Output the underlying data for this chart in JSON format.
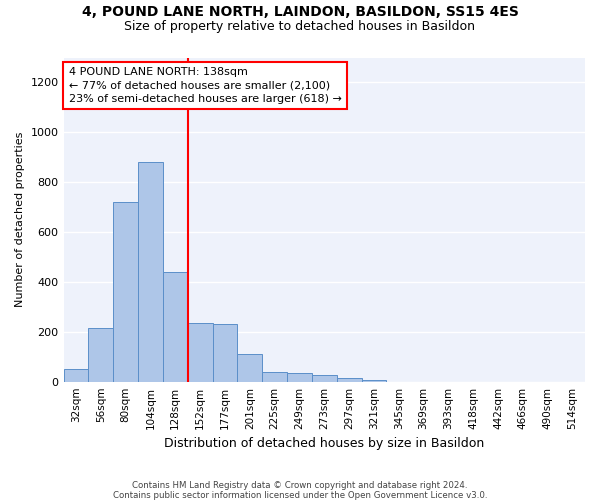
{
  "title": "4, POUND LANE NORTH, LAINDON, BASILDON, SS15 4ES",
  "subtitle": "Size of property relative to detached houses in Basildon",
  "xlabel": "Distribution of detached houses by size in Basildon",
  "ylabel": "Number of detached properties",
  "bar_values": [
    50,
    215,
    720,
    880,
    440,
    235,
    230,
    110,
    40,
    35,
    25,
    15,
    5,
    0,
    0,
    0,
    0,
    0,
    0,
    0,
    0
  ],
  "bar_labels": [
    "32sqm",
    "56sqm",
    "80sqm",
    "104sqm",
    "128sqm",
    "152sqm",
    "177sqm",
    "201sqm",
    "225sqm",
    "249sqm",
    "273sqm",
    "297sqm",
    "321sqm",
    "345sqm",
    "369sqm",
    "393sqm",
    "418sqm",
    "442sqm",
    "466sqm",
    "490sqm",
    "514sqm"
  ],
  "bar_color": "#aec6e8",
  "bar_edge_color": "#5b8fc9",
  "bar_width": 1.0,
  "vline_x": 4.5,
  "vline_color": "red",
  "annotation_line1": "4 POUND LANE NORTH: 138sqm",
  "annotation_line2": "← 77% of detached houses are smaller (2,100)",
  "annotation_line3": "23% of semi-detached houses are larger (618) →",
  "ylim": [
    0,
    1300
  ],
  "yticks": [
    0,
    200,
    400,
    600,
    800,
    1000,
    1200
  ],
  "bg_color": "#eef2fb",
  "grid_color": "#ffffff",
  "footer_line1": "Contains HM Land Registry data © Crown copyright and database right 2024.",
  "footer_line2": "Contains public sector information licensed under the Open Government Licence v3.0.",
  "title_fontsize": 10,
  "subtitle_fontsize": 9,
  "annotation_fontsize": 8,
  "ylabel_fontsize": 8,
  "xlabel_fontsize": 9
}
